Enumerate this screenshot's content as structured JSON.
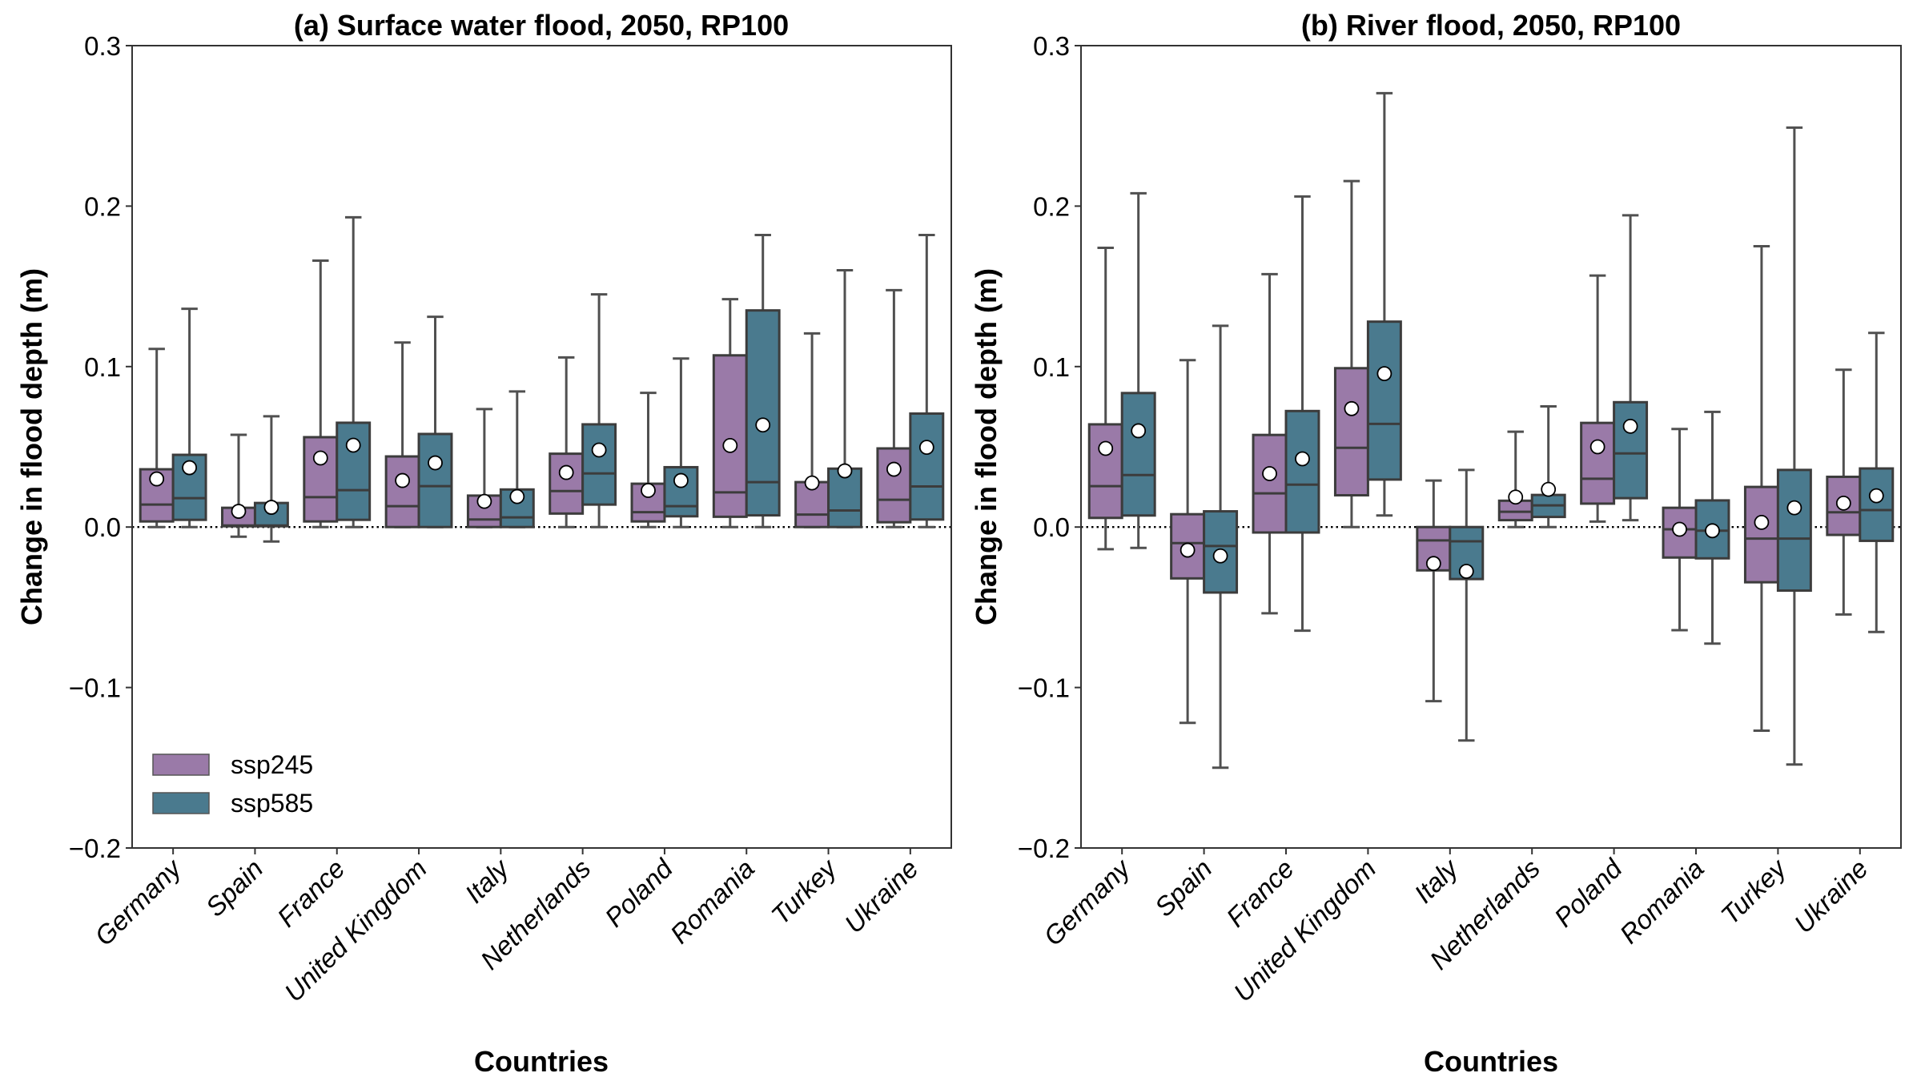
{
  "chart_data": [
    {
      "type": "box",
      "title": "(a) Surface water flood, 2050, RP100",
      "xlabel": "Countries",
      "ylabel": "Change in flood depth (m)",
      "ylim": [
        -0.2,
        0.3
      ],
      "yticks": [
        -0.2,
        -0.1,
        0.0,
        0.1,
        0.2,
        0.3
      ],
      "ytick_labels": [
        "−0.2",
        "−0.1",
        "0.0",
        "0.1",
        "0.2",
        "0.3"
      ],
      "reference_line": 0.0,
      "legend": {
        "show": true,
        "position": "lower-left"
      },
      "categories": [
        "Germany",
        "Spain",
        "France",
        "United Kingdom",
        "Italy",
        "Netherlands",
        "Poland",
        "Romania",
        "Turkey",
        "Ukraine"
      ],
      "series": [
        {
          "name": "ssp245",
          "color": "#9a7aa8",
          "boxes": [
            {
              "whislo": 0.0,
              "q1": 0.0035,
              "med": 0.014,
              "q3": 0.036,
              "whishi": 0.111,
              "mean": 0.03
            },
            {
              "whislo": -0.006,
              "q1": 0.0005,
              "med": 0.001,
              "q3": 0.012,
              "whishi": 0.0575,
              "mean": 0.0098
            },
            {
              "whislo": 0.0,
              "q1": 0.0035,
              "med": 0.0186,
              "q3": 0.056,
              "whishi": 0.166,
              "mean": 0.043
            },
            {
              "whislo": 0.0,
              "q1": 0.0,
              "med": 0.013,
              "q3": 0.044,
              "whishi": 0.115,
              "mean": 0.029
            },
            {
              "whislo": 0.0,
              "q1": 0.0,
              "med": 0.0047,
              "q3": 0.0196,
              "whishi": 0.0735,
              "mean": 0.016
            },
            {
              "whislo": 0.0,
              "q1": 0.0084,
              "med": 0.0224,
              "q3": 0.0457,
              "whishi": 0.1057,
              "mean": 0.034
            },
            {
              "whislo": 0.0,
              "q1": 0.0035,
              "med": 0.0093,
              "q3": 0.027,
              "whishi": 0.0836,
              "mean": 0.0228
            },
            {
              "whislo": 0.0,
              "q1": 0.0064,
              "med": 0.0216,
              "q3": 0.107,
              "whishi": 0.142,
              "mean": 0.0508
            },
            {
              "whislo": 0.0,
              "q1": 0.0,
              "med": 0.0078,
              "q3": 0.028,
              "whishi": 0.1207,
              "mean": 0.0275
            },
            {
              "whislo": 0.0,
              "q1": 0.003,
              "med": 0.017,
              "q3": 0.049,
              "whishi": 0.1476,
              "mean": 0.036
            }
          ]
        },
        {
          "name": "ssp585",
          "color": "#4a7a8e",
          "boxes": [
            {
              "whislo": 0.0,
              "q1": 0.0045,
              "med": 0.018,
              "q3": 0.045,
              "whishi": 0.136,
              "mean": 0.037
            },
            {
              "whislo": -0.009,
              "q1": 0.0005,
              "med": 0.001,
              "q3": 0.015,
              "whishi": 0.069,
              "mean": 0.0123
            },
            {
              "whislo": 0.0,
              "q1": 0.0045,
              "med": 0.023,
              "q3": 0.065,
              "whishi": 0.193,
              "mean": 0.051
            },
            {
              "whislo": 0.0,
              "q1": 0.0,
              "med": 0.0255,
              "q3": 0.058,
              "whishi": 0.131,
              "mean": 0.04
            },
            {
              "whislo": 0.0,
              "q1": 0.0,
              "med": 0.006,
              "q3": 0.0234,
              "whishi": 0.0845,
              "mean": 0.019
            },
            {
              "whislo": 0.0,
              "q1": 0.014,
              "med": 0.0334,
              "q3": 0.064,
              "whishi": 0.145,
              "mean": 0.048
            },
            {
              "whislo": 0.0,
              "q1": 0.0067,
              "med": 0.013,
              "q3": 0.0373,
              "whishi": 0.105,
              "mean": 0.029
            },
            {
              "whislo": 0.0,
              "q1": 0.0073,
              "med": 0.028,
              "q3": 0.135,
              "whishi": 0.182,
              "mean": 0.0636
            },
            {
              "whislo": 0.0,
              "q1": 0.0,
              "med": 0.0103,
              "q3": 0.0364,
              "whishi": 0.16,
              "mean": 0.035
            },
            {
              "whislo": 0.0,
              "q1": 0.0047,
              "med": 0.0253,
              "q3": 0.0707,
              "whishi": 0.182,
              "mean": 0.0497
            }
          ]
        }
      ]
    },
    {
      "type": "box",
      "title": "(b) River flood, 2050, RP100",
      "xlabel": "Countries",
      "ylabel": "Change in flood depth (m)",
      "ylim": [
        -0.2,
        0.3
      ],
      "yticks": [
        -0.2,
        -0.1,
        0.0,
        0.1,
        0.2,
        0.3
      ],
      "ytick_labels": [
        "−0.2",
        "−0.1",
        "0.0",
        "0.1",
        "0.2",
        "0.3"
      ],
      "reference_line": 0.0,
      "legend": {
        "show": false
      },
      "categories": [
        "Germany",
        "Spain",
        "France",
        "United Kingdom",
        "Italy",
        "Netherlands",
        "Poland",
        "Romania",
        "Turkey",
        "Ukraine"
      ],
      "series": [
        {
          "name": "ssp245",
          "color": "#9a7aa8",
          "boxes": [
            {
              "whislo": -0.0138,
              "q1": 0.0057,
              "med": 0.0255,
              "q3": 0.064,
              "whishi": 0.174,
              "mean": 0.049
            },
            {
              "whislo": -0.122,
              "q1": -0.032,
              "med": -0.01,
              "q3": 0.008,
              "whishi": 0.104,
              "mean": -0.0144
            },
            {
              "whislo": -0.0537,
              "q1": -0.0034,
              "med": 0.021,
              "q3": 0.0574,
              "whishi": 0.1576,
              "mean": 0.0333
            },
            {
              "whislo": 0.0,
              "q1": 0.0198,
              "med": 0.0494,
              "q3": 0.099,
              "whishi": 0.2156,
              "mean": 0.0738
            },
            {
              "whislo": -0.1085,
              "q1": -0.027,
              "med": -0.0083,
              "q3": 0.0,
              "whishi": 0.029,
              "mean": -0.0227
            },
            {
              "whislo": 0.0,
              "q1": 0.0043,
              "med": 0.0095,
              "q3": 0.0164,
              "whishi": 0.0594,
              "mean": 0.0187
            },
            {
              "whislo": 0.0034,
              "q1": 0.0146,
              "med": 0.0301,
              "q3": 0.0649,
              "whishi": 0.1567,
              "mean": 0.05
            },
            {
              "whislo": -0.0643,
              "q1": -0.019,
              "med": -0.0014,
              "q3": 0.012,
              "whishi": 0.0611,
              "mean": -0.0014
            },
            {
              "whislo": -0.1269,
              "q1": -0.0344,
              "med": -0.0072,
              "q3": 0.025,
              "whishi": 0.175,
              "mean": 0.0029
            },
            {
              "whislo": -0.0545,
              "q1": -0.0049,
              "med": 0.0092,
              "q3": 0.0313,
              "whishi": 0.098,
              "mean": 0.0149
            }
          ]
        },
        {
          "name": "ssp585",
          "color": "#4a7a8e",
          "boxes": [
            {
              "whislo": -0.013,
              "q1": 0.0072,
              "med": 0.0324,
              "q3": 0.0835,
              "whishi": 0.208,
              "mean": 0.06
            },
            {
              "whislo": -0.15,
              "q1": -0.0408,
              "med": -0.0118,
              "q3": 0.0098,
              "whishi": 0.1254,
              "mean": -0.018
            },
            {
              "whislo": -0.0646,
              "q1": -0.0034,
              "med": 0.0264,
              "q3": 0.0723,
              "whishi": 0.206,
              "mean": 0.0425
            },
            {
              "whislo": 0.0072,
              "q1": 0.0296,
              "med": 0.0643,
              "q3": 0.128,
              "whishi": 0.2704,
              "mean": 0.0956
            },
            {
              "whislo": -0.133,
              "q1": -0.0324,
              "med": -0.0089,
              "q3": 0.0,
              "whishi": 0.0356,
              "mean": -0.0276
            },
            {
              "whislo": 0.0,
              "q1": 0.0063,
              "med": 0.0135,
              "q3": 0.02,
              "whishi": 0.0752,
              "mean": 0.0235
            },
            {
              "whislo": 0.0043,
              "q1": 0.018,
              "med": 0.0459,
              "q3": 0.0778,
              "whishi": 0.1943,
              "mean": 0.0628
            },
            {
              "whislo": -0.0726,
              "q1": -0.0195,
              "med": -0.0023,
              "q3": 0.0166,
              "whishi": 0.0718,
              "mean": -0.0023
            },
            {
              "whislo": -0.148,
              "q1": -0.0396,
              "med": -0.0072,
              "q3": 0.0356,
              "whishi": 0.2489,
              "mean": 0.012
            },
            {
              "whislo": -0.0654,
              "q1": -0.0086,
              "med": 0.0106,
              "q3": 0.0365,
              "whishi": 0.121,
              "mean": 0.0195
            }
          ]
        }
      ]
    }
  ],
  "style": {
    "edge_color": "#3c3c3c",
    "mean_marker_fill": "#ffffff",
    "mean_marker_edge": "#000000",
    "reference_line_color": "#000000"
  }
}
